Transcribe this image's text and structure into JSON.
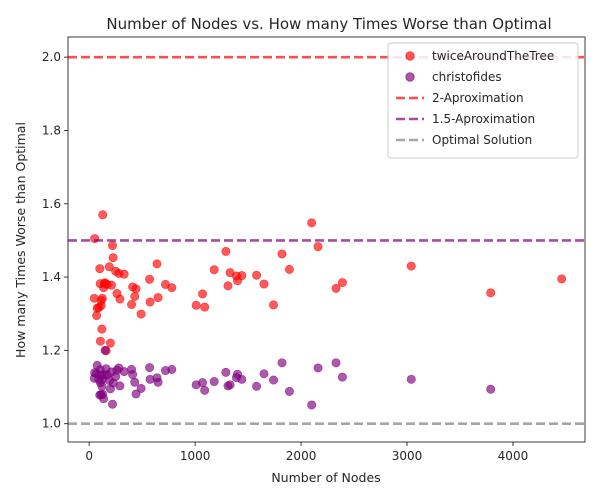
{
  "chart_data": {
    "type": "scatter",
    "title": "Number of Nodes vs. How many Times Worse than Optimal",
    "xlabel": "Number of Nodes",
    "ylabel": "How many Times Worse than Optimal",
    "xlim": [
      -200,
      4680
    ],
    "ylim": [
      0.95,
      2.055
    ],
    "xticks": [
      0,
      1000,
      2000,
      3000,
      4000
    ],
    "yticks": [
      1.0,
      1.2,
      1.4,
      1.6,
      1.8,
      2.0
    ],
    "grid": false,
    "legend_placement": "top-right",
    "series": [
      {
        "name": "twiceAroundTheTree",
        "kind": "points",
        "color": "#ff0000",
        "alpha": 0.65,
        "points": [
          [
            52,
            1.505
          ],
          [
            48,
            1.342
          ],
          [
            70,
            1.295
          ],
          [
            76,
            1.315
          ],
          [
            90,
            1.317
          ],
          [
            100,
            1.423
          ],
          [
            104,
            1.382
          ],
          [
            112,
            1.322
          ],
          [
            106,
            1.225
          ],
          [
            114,
            1.336
          ],
          [
            120,
            1.258
          ],
          [
            124,
            1.342
          ],
          [
            128,
            1.57
          ],
          [
            136,
            1.371
          ],
          [
            144,
            1.383
          ],
          [
            150,
            1.384
          ],
          [
            160,
            1.199
          ],
          [
            170,
            1.38
          ],
          [
            190,
            1.428
          ],
          [
            200,
            1.22
          ],
          [
            210,
            1.378
          ],
          [
            220,
            1.486
          ],
          [
            226,
            1.453
          ],
          [
            250,
            1.416
          ],
          [
            262,
            1.355
          ],
          [
            280,
            1.41
          ],
          [
            290,
            1.34
          ],
          [
            330,
            1.408
          ],
          [
            400,
            1.325
          ],
          [
            410,
            1.373
          ],
          [
            430,
            1.347
          ],
          [
            442,
            1.368
          ],
          [
            490,
            1.299
          ],
          [
            570,
            1.394
          ],
          [
            575,
            1.332
          ],
          [
            640,
            1.436
          ],
          [
            650,
            1.344
          ],
          [
            720,
            1.38
          ],
          [
            780,
            1.371
          ],
          [
            1010,
            1.323
          ],
          [
            1070,
            1.354
          ],
          [
            1090,
            1.318
          ],
          [
            1180,
            1.42
          ],
          [
            1290,
            1.47
          ],
          [
            1310,
            1.376
          ],
          [
            1330,
            1.412
          ],
          [
            1390,
            1.403
          ],
          [
            1400,
            1.39
          ],
          [
            1440,
            1.404
          ],
          [
            1580,
            1.405
          ],
          [
            1650,
            1.381
          ],
          [
            1740,
            1.324
          ],
          [
            1820,
            1.463
          ],
          [
            1890,
            1.421
          ],
          [
            2100,
            1.548
          ],
          [
            2160,
            1.483
          ],
          [
            2330,
            1.369
          ],
          [
            2390,
            1.385
          ],
          [
            3040,
            1.43
          ],
          [
            3790,
            1.357
          ],
          [
            4460,
            1.395
          ]
        ]
      },
      {
        "name": "christofides",
        "kind": "points",
        "color": "#800080",
        "alpha": 0.65,
        "points": [
          [
            52,
            1.139
          ],
          [
            48,
            1.124
          ],
          [
            70,
            1.136
          ],
          [
            76,
            1.159
          ],
          [
            90,
            1.121
          ],
          [
            100,
            1.078
          ],
          [
            104,
            1.147
          ],
          [
            112,
            1.079
          ],
          [
            106,
            1.112
          ],
          [
            114,
            1.133
          ],
          [
            120,
            1.102
          ],
          [
            124,
            1.121
          ],
          [
            128,
            1.08
          ],
          [
            136,
            1.068
          ],
          [
            144,
            1.133
          ],
          [
            150,
            1.2
          ],
          [
            160,
            1.15
          ],
          [
            170,
            1.133
          ],
          [
            190,
            1.118
          ],
          [
            200,
            1.095
          ],
          [
            210,
            1.141
          ],
          [
            220,
            1.053
          ],
          [
            226,
            1.111
          ],
          [
            250,
            1.129
          ],
          [
            262,
            1.146
          ],
          [
            280,
            1.152
          ],
          [
            290,
            1.103
          ],
          [
            330,
            1.142
          ],
          [
            400,
            1.148
          ],
          [
            410,
            1.134
          ],
          [
            430,
            1.113
          ],
          [
            442,
            1.081
          ],
          [
            490,
            1.096
          ],
          [
            570,
            1.153
          ],
          [
            575,
            1.121
          ],
          [
            640,
            1.125
          ],
          [
            650,
            1.113
          ],
          [
            720,
            1.145
          ],
          [
            780,
            1.148
          ],
          [
            1010,
            1.106
          ],
          [
            1070,
            1.112
          ],
          [
            1090,
            1.091
          ],
          [
            1180,
            1.115
          ],
          [
            1290,
            1.14
          ],
          [
            1310,
            1.103
          ],
          [
            1330,
            1.106
          ],
          [
            1390,
            1.126
          ],
          [
            1400,
            1.135
          ],
          [
            1440,
            1.121
          ],
          [
            1580,
            1.102
          ],
          [
            1650,
            1.136
          ],
          [
            1740,
            1.119
          ],
          [
            1820,
            1.166
          ],
          [
            1890,
            1.088
          ],
          [
            2100,
            1.051
          ],
          [
            2160,
            1.152
          ],
          [
            2330,
            1.166
          ],
          [
            2390,
            1.127
          ],
          [
            3040,
            1.121
          ],
          [
            3790,
            1.094
          ]
        ]
      },
      {
        "name": "2-Aproximation",
        "kind": "hline",
        "y": 2.0,
        "color": "#ff0000",
        "alpha": 0.7,
        "dashed": true
      },
      {
        "name": "1.5-Aproximation",
        "kind": "hline",
        "y": 1.5,
        "color": "#800080",
        "alpha": 0.7,
        "dashed": true
      },
      {
        "name": "Optimal Solution",
        "kind": "hline",
        "y": 1.0,
        "color": "#808080",
        "alpha": 0.7,
        "dashed": true
      }
    ]
  }
}
